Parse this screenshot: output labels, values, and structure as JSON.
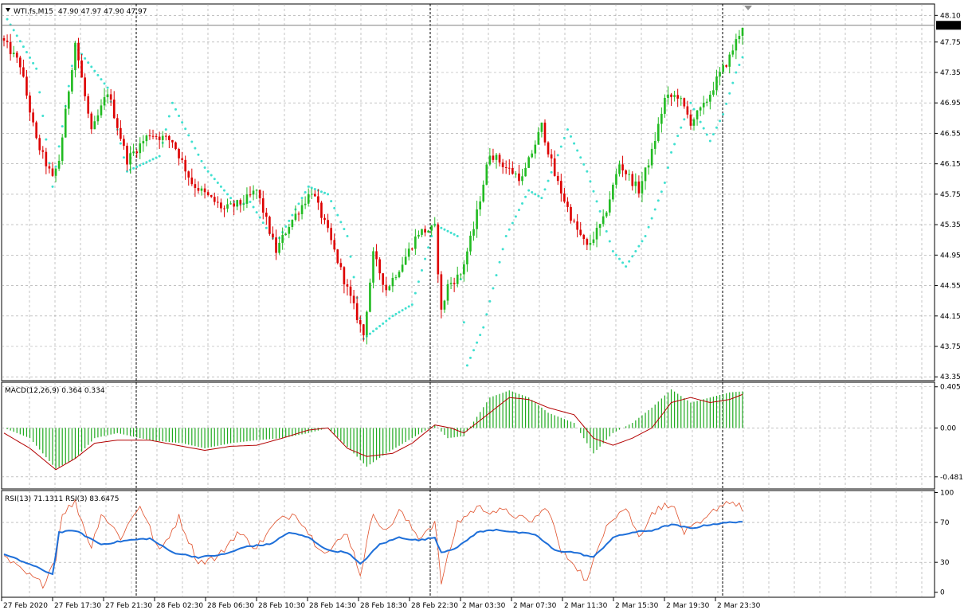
{
  "colors": {
    "background": "#ffffff",
    "grid": "#a0a0a0",
    "bull": "#22bb22",
    "bear": "#dd0000",
    "sar": "#40e0d0",
    "macd_hist": "#1faa1f",
    "macd_signal": "#b30000",
    "rsi13": "#1e6fd9",
    "rsi3": "#e0502a",
    "price_badge": "#000000",
    "price_badge_text": "#ffffff"
  },
  "chart_data": [
    {
      "type": "candlestick",
      "title": "WTI.fs,M15  47.90 47.97 47.90 47.97",
      "header": {
        "symbol": "WTI.fs,M15",
        "ohlc": "47.90 47.97 47.90 47.97"
      },
      "current_price": "47.97",
      "ylim": [
        43.3,
        48.25
      ],
      "y_ticks": [
        "48.10",
        "47.75",
        "47.35",
        "46.95",
        "46.55",
        "46.15",
        "45.75",
        "45.35",
        "44.95",
        "44.55",
        "44.15",
        "43.75",
        "43.35"
      ],
      "x_ticks": [
        "27 Feb 2020",
        "27 Feb 17:30",
        "27 Feb 21:30",
        "28 Feb 02:30",
        "28 Feb 06:30",
        "28 Feb 10:30",
        "28 Feb 14:30",
        "28 Feb 18:30",
        "28 Feb 22:30",
        "2 Mar 03:30",
        "2 Mar 07:30",
        "2 Mar 11:30",
        "2 Mar 15:30",
        "2 Mar 19:30",
        "2 Mar 23:30"
      ],
      "close_anchors": [
        [
          0,
          47.75
        ],
        [
          5,
          47.45
        ],
        [
          10,
          46.45
        ],
        [
          15,
          45.95
        ],
        [
          17,
          46.2
        ],
        [
          22,
          47.75
        ],
        [
          27,
          46.55
        ],
        [
          32,
          47.1
        ],
        [
          38,
          46.2
        ],
        [
          45,
          46.55
        ],
        [
          52,
          46.45
        ],
        [
          58,
          45.9
        ],
        [
          62,
          45.75
        ],
        [
          68,
          45.55
        ],
        [
          74,
          45.65
        ],
        [
          78,
          45.8
        ],
        [
          84,
          45.0
        ],
        [
          88,
          45.35
        ],
        [
          95,
          45.8
        ],
        [
          100,
          45.25
        ],
        [
          106,
          44.5
        ],
        [
          111,
          43.9
        ],
        [
          114,
          44.95
        ],
        [
          118,
          44.5
        ],
        [
          123,
          44.85
        ],
        [
          128,
          45.25
        ],
        [
          133,
          45.3
        ],
        [
          135,
          44.2
        ],
        [
          137,
          44.55
        ],
        [
          141,
          44.7
        ],
        [
          145,
          45.3
        ],
        [
          150,
          46.3
        ],
        [
          155,
          46.1
        ],
        [
          160,
          45.95
        ],
        [
          166,
          46.65
        ],
        [
          170,
          46.0
        ],
        [
          176,
          45.35
        ],
        [
          180,
          45.05
        ],
        [
          185,
          45.4
        ],
        [
          190,
          46.15
        ],
        [
          196,
          45.8
        ],
        [
          200,
          46.3
        ],
        [
          204,
          47.0
        ],
        [
          208,
          47.05
        ],
        [
          212,
          46.7
        ],
        [
          216,
          46.9
        ],
        [
          220,
          47.25
        ],
        [
          224,
          47.55
        ],
        [
          228,
          47.97
        ]
      ],
      "sar_anchors": [
        [
          1,
          48.05
        ],
        [
          10,
          47.4
        ],
        [
          15,
          45.85
        ],
        [
          22,
          47.7
        ],
        [
          32,
          47.15
        ],
        [
          38,
          46.05
        ],
        [
          48,
          46.25
        ],
        [
          52,
          46.95
        ],
        [
          62,
          46.1
        ],
        [
          72,
          45.6
        ],
        [
          76,
          45.65
        ],
        [
          84,
          45.1
        ],
        [
          94,
          45.85
        ],
        [
          100,
          45.75
        ],
        [
          106,
          45.2
        ],
        [
          111,
          43.85
        ],
        [
          120,
          44.15
        ],
        [
          126,
          44.3
        ],
        [
          133,
          45.35
        ],
        [
          140,
          45.2
        ],
        [
          143,
          43.5
        ],
        [
          148,
          44.0
        ],
        [
          155,
          45.2
        ],
        [
          162,
          45.8
        ],
        [
          166,
          45.7
        ],
        [
          174,
          46.6
        ],
        [
          180,
          46.05
        ],
        [
          188,
          45.0
        ],
        [
          192,
          44.8
        ],
        [
          198,
          45.2
        ],
        [
          204,
          45.9
        ],
        [
          206,
          46.3
        ],
        [
          212,
          46.95
        ],
        [
          218,
          46.45
        ],
        [
          222,
          46.8
        ],
        [
          226,
          47.35
        ],
        [
          228,
          47.55
        ]
      ]
    },
    {
      "type": "bar",
      "title": "MACD(12,26,9) 0.364 0.334",
      "header": "MACD(12,26,9) 0.364 0.334",
      "ylim": [
        -0.6,
        0.45
      ],
      "y_ticks": [
        "0.405",
        "0.00",
        "-0.481"
      ],
      "hist_anchors": [
        [
          0,
          0.0
        ],
        [
          8,
          -0.1
        ],
        [
          16,
          -0.4
        ],
        [
          22,
          -0.3
        ],
        [
          28,
          -0.1
        ],
        [
          35,
          -0.05
        ],
        [
          45,
          -0.12
        ],
        [
          55,
          -0.15
        ],
        [
          62,
          -0.2
        ],
        [
          70,
          -0.15
        ],
        [
          78,
          -0.12
        ],
        [
          86,
          -0.1
        ],
        [
          94,
          -0.05
        ],
        [
          100,
          0.0
        ],
        [
          108,
          -0.25
        ],
        [
          112,
          -0.38
        ],
        [
          118,
          -0.25
        ],
        [
          126,
          -0.1
        ],
        [
          133,
          0.03
        ],
        [
          137,
          -0.1
        ],
        [
          142,
          -0.08
        ],
        [
          150,
          0.3
        ],
        [
          156,
          0.37
        ],
        [
          162,
          0.3
        ],
        [
          168,
          0.15
        ],
        [
          176,
          0.05
        ],
        [
          182,
          -0.25
        ],
        [
          188,
          -0.05
        ],
        [
          194,
          0.05
        ],
        [
          200,
          0.2
        ],
        [
          206,
          0.38
        ],
        [
          212,
          0.25
        ],
        [
          218,
          0.3
        ],
        [
          224,
          0.35
        ],
        [
          228,
          0.36
        ]
      ],
      "signal_anchors": [
        [
          0,
          -0.05
        ],
        [
          8,
          -0.2
        ],
        [
          16,
          -0.41
        ],
        [
          22,
          -0.3
        ],
        [
          28,
          -0.15
        ],
        [
          35,
          -0.12
        ],
        [
          45,
          -0.12
        ],
        [
          55,
          -0.18
        ],
        [
          62,
          -0.22
        ],
        [
          70,
          -0.18
        ],
        [
          78,
          -0.17
        ],
        [
          86,
          -0.1
        ],
        [
          94,
          -0.02
        ],
        [
          100,
          0.0
        ],
        [
          106,
          -0.2
        ],
        [
          112,
          -0.28
        ],
        [
          120,
          -0.25
        ],
        [
          126,
          -0.15
        ],
        [
          133,
          0.03
        ],
        [
          138,
          0.0
        ],
        [
          142,
          -0.05
        ],
        [
          150,
          0.15
        ],
        [
          156,
          0.3
        ],
        [
          162,
          0.28
        ],
        [
          168,
          0.2
        ],
        [
          176,
          0.13
        ],
        [
          182,
          -0.1
        ],
        [
          188,
          -0.17
        ],
        [
          194,
          -0.1
        ],
        [
          200,
          0.0
        ],
        [
          206,
          0.25
        ],
        [
          212,
          0.3
        ],
        [
          218,
          0.25
        ],
        [
          224,
          0.28
        ],
        [
          228,
          0.33
        ]
      ]
    },
    {
      "type": "line",
      "title": "RSI(13) 71.1311  RSI(3) 83.6475",
      "header": "RSI(13) 71.1311  RSI(3) 83.6475",
      "ylim": [
        -5,
        102
      ],
      "y_ticks": [
        "100",
        "70",
        "30",
        "0"
      ],
      "levels": [
        70,
        30
      ],
      "series": [
        {
          "name": "RSI(13)",
          "anchors": [
            [
              0,
              38
            ],
            [
              8,
              28
            ],
            [
              15,
              18
            ],
            [
              17,
              60
            ],
            [
              22,
              62
            ],
            [
              30,
              48
            ],
            [
              38,
              52
            ],
            [
              45,
              54
            ],
            [
              52,
              40
            ],
            [
              60,
              35
            ],
            [
              68,
              38
            ],
            [
              75,
              46
            ],
            [
              82,
              48
            ],
            [
              88,
              60
            ],
            [
              94,
              55
            ],
            [
              100,
              42
            ],
            [
              106,
              40
            ],
            [
              110,
              28
            ],
            [
              116,
              48
            ],
            [
              122,
              55
            ],
            [
              128,
              52
            ],
            [
              133,
              55
            ],
            [
              135,
              40
            ],
            [
              140,
              45
            ],
            [
              146,
              60
            ],
            [
              152,
              63
            ],
            [
              158,
              60
            ],
            [
              164,
              58
            ],
            [
              170,
              42
            ],
            [
              176,
              40
            ],
            [
              182,
              35
            ],
            [
              188,
              55
            ],
            [
              194,
              60
            ],
            [
              200,
              62
            ],
            [
              206,
              68
            ],
            [
              212,
              64
            ],
            [
              218,
              68
            ],
            [
              224,
              70
            ],
            [
              228,
              71
            ]
          ]
        },
        {
          "name": "RSI(3)",
          "anchors": [
            [
              0,
              35
            ],
            [
              6,
              20
            ],
            [
              12,
              8
            ],
            [
              16,
              35
            ],
            [
              18,
              80
            ],
            [
              22,
              90
            ],
            [
              27,
              45
            ],
            [
              30,
              80
            ],
            [
              36,
              55
            ],
            [
              42,
              88
            ],
            [
              48,
              40
            ],
            [
              54,
              75
            ],
            [
              60,
              30
            ],
            [
              66,
              35
            ],
            [
              72,
              60
            ],
            [
              78,
              45
            ],
            [
              84,
              70
            ],
            [
              90,
              80
            ],
            [
              96,
              50
            ],
            [
              100,
              40
            ],
            [
              106,
              60
            ],
            [
              110,
              18
            ],
            [
              114,
              80
            ],
            [
              118,
              60
            ],
            [
              122,
              82
            ],
            [
              128,
              55
            ],
            [
              133,
              70
            ],
            [
              135,
              10
            ],
            [
              140,
              70
            ],
            [
              146,
              85
            ],
            [
              150,
              82
            ],
            [
              156,
              80
            ],
            [
              162,
              70
            ],
            [
              168,
              85
            ],
            [
              172,
              40
            ],
            [
              176,
              30
            ],
            [
              180,
              10
            ],
            [
              186,
              70
            ],
            [
              192,
              85
            ],
            [
              196,
              55
            ],
            [
              200,
              80
            ],
            [
              206,
              90
            ],
            [
              210,
              60
            ],
            [
              216,
              70
            ],
            [
              220,
              85
            ],
            [
              224,
              92
            ],
            [
              228,
              84
            ]
          ]
        }
      ]
    }
  ]
}
